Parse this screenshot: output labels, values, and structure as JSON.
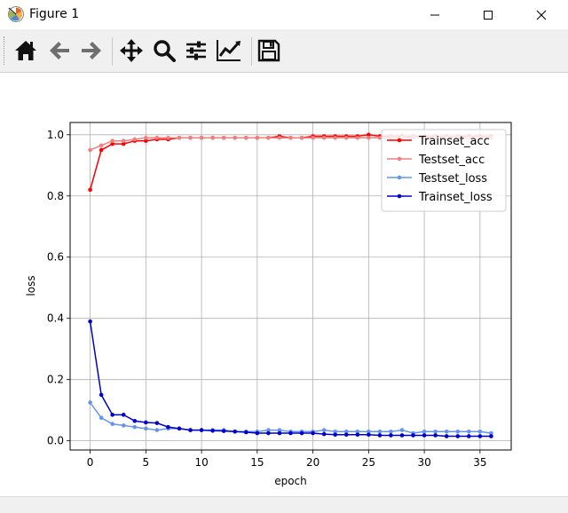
{
  "window": {
    "title": "Figure 1"
  },
  "toolbar": {
    "buttons": [
      {
        "name": "home-button",
        "icon": "home-icon"
      },
      {
        "name": "back-button",
        "icon": "arrow-left-icon"
      },
      {
        "name": "forward-button",
        "icon": "arrow-right-icon"
      },
      {
        "name": "pan-button",
        "icon": "move-icon"
      },
      {
        "name": "zoom-button",
        "icon": "magnifier-icon"
      },
      {
        "name": "subplots-button",
        "icon": "sliders-icon"
      },
      {
        "name": "edit-axis-button",
        "icon": "line-chart-icon"
      },
      {
        "name": "save-button",
        "icon": "floppy-disk-icon"
      }
    ]
  },
  "chart_data": {
    "type": "line",
    "title": "",
    "xlabel": "epoch",
    "ylabel": "loss",
    "xlim": [
      -1.8,
      37.8
    ],
    "ylim": [
      -0.03,
      1.04
    ],
    "xticks": [
      0,
      5,
      10,
      15,
      20,
      25,
      30,
      35
    ],
    "xtick_labels": [
      "0",
      "5",
      "10",
      "15",
      "20",
      "25",
      "30",
      "35"
    ],
    "yticks": [
      0.0,
      0.2,
      0.4,
      0.6,
      0.8,
      1.0
    ],
    "ytick_labels": [
      "0.0",
      "0.2",
      "0.4",
      "0.6",
      "0.8",
      "1.0"
    ],
    "grid": true,
    "legend_position": "top-right",
    "x": [
      0,
      1,
      2,
      3,
      4,
      5,
      6,
      7,
      8,
      9,
      10,
      11,
      12,
      13,
      14,
      15,
      16,
      17,
      18,
      19,
      20,
      21,
      22,
      23,
      24,
      25,
      26,
      27,
      28,
      29,
      30,
      31,
      32,
      33,
      34,
      35,
      36
    ],
    "series": [
      {
        "name": "Trainset_acc",
        "color": "#ff0000",
        "values": [
          0.82,
          0.95,
          0.97,
          0.97,
          0.98,
          0.98,
          0.985,
          0.985,
          0.99,
          0.99,
          0.99,
          0.99,
          0.99,
          0.99,
          0.99,
          0.99,
          0.99,
          0.995,
          0.99,
          0.99,
          0.995,
          0.995,
          0.995,
          0.995,
          0.995,
          1.0,
          0.995,
          0.995,
          0.995,
          0.995,
          0.995,
          0.995,
          0.995,
          0.995,
          0.995,
          0.995,
          0.995
        ]
      },
      {
        "name": "Testset_acc",
        "color": "#f08080",
        "values": [
          0.95,
          0.965,
          0.98,
          0.98,
          0.985,
          0.99,
          0.99,
          0.99,
          0.99,
          0.99,
          0.99,
          0.99,
          0.99,
          0.99,
          0.99,
          0.99,
          0.99,
          0.99,
          0.99,
          0.99,
          0.99,
          0.99,
          0.99,
          0.99,
          0.99,
          0.99,
          0.99,
          0.99,
          0.99,
          0.99,
          0.99,
          0.99,
          0.99,
          0.99,
          0.99,
          0.99,
          0.99
        ]
      },
      {
        "name": "Testset_loss",
        "color": "#6495ed",
        "values": [
          0.125,
          0.075,
          0.055,
          0.05,
          0.045,
          0.04,
          0.035,
          0.04,
          0.04,
          0.035,
          0.035,
          0.035,
          0.035,
          0.03,
          0.03,
          0.03,
          0.035,
          0.035,
          0.03,
          0.03,
          0.03,
          0.035,
          0.03,
          0.03,
          0.03,
          0.03,
          0.03,
          0.03,
          0.035,
          0.025,
          0.03,
          0.03,
          0.03,
          0.03,
          0.03,
          0.03,
          0.025
        ]
      },
      {
        "name": "Trainset_loss",
        "color": "#0000cd",
        "values": [
          0.39,
          0.15,
          0.085,
          0.085,
          0.065,
          0.06,
          0.058,
          0.045,
          0.04,
          0.035,
          0.035,
          0.033,
          0.032,
          0.03,
          0.028,
          0.025,
          0.025,
          0.025,
          0.025,
          0.025,
          0.025,
          0.022,
          0.02,
          0.02,
          0.02,
          0.02,
          0.018,
          0.018,
          0.018,
          0.018,
          0.018,
          0.018,
          0.015,
          0.015,
          0.015,
          0.015,
          0.015
        ]
      }
    ]
  }
}
